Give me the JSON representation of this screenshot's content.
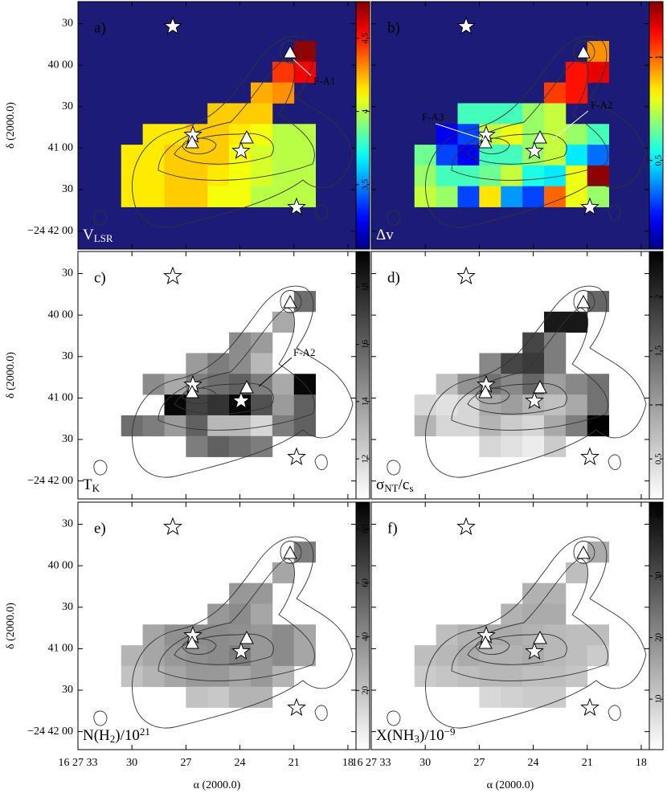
{
  "chart_data": {
    "type": "heatmap",
    "x_label": "α (2000.0)",
    "y_label": "δ (2000.0)",
    "x": [
      30.0,
      28.8,
      27.6,
      26.4,
      25.2,
      24.0,
      22.8,
      21.6,
      20.4
    ],
    "y": [
      130,
      115,
      100,
      85,
      70,
      55,
      40,
      25
    ],
    "xlim": [
      33,
      17.55
    ],
    "ylim": [
      -13,
      166
    ],
    "xticks": [
      {
        "value": 33,
        "label": "16 27 33"
      },
      30,
      27,
      24,
      21,
      18
    ],
    "yticks": [
      {
        "value": 0,
        "label": "−24 42 00"
      },
      30,
      {
        "value": 60,
        "label": "41 00"
      },
      {
        "value": 90,
        "label": "30"
      },
      {
        "value": 120,
        "label": "40 00"
      },
      {
        "value": 150,
        "label": "30"
      }
    ],
    "panels": [
      {
        "label": "a)",
        "quantity": [
          {
            "text": "V"
          },
          {
            "sub": "LSR"
          }
        ],
        "colormap": "jet",
        "background": "#1c1c78",
        "clim": [
          3.06,
          4.75
        ],
        "cticks": [
          3.5,
          4,
          4.5
        ],
        "annotations": [
          "F-A1"
        ],
        "values": [
          [
            null,
            null,
            null,
            null,
            null,
            null,
            null,
            null,
            4.72
          ],
          [
            null,
            null,
            null,
            null,
            null,
            null,
            null,
            4.45,
            4.55
          ],
          [
            null,
            null,
            null,
            null,
            null,
            null,
            4.25,
            4.3,
            null
          ],
          [
            null,
            null,
            null,
            null,
            4.2,
            4.2,
            4.2,
            null,
            null
          ],
          [
            null,
            4.15,
            4.15,
            4.2,
            4.2,
            4.15,
            4.1,
            4.0,
            4.0
          ],
          [
            4.15,
            4.15,
            4.2,
            4.2,
            4.2,
            4.1,
            4.05,
            4.0,
            4.0
          ],
          [
            4.15,
            4.15,
            4.2,
            4.2,
            4.15,
            4.1,
            4.05,
            4.0,
            4.0
          ],
          [
            4.15,
            4.15,
            4.2,
            4.2,
            4.1,
            4.1,
            4.0,
            4.0,
            4.0
          ]
        ]
      },
      {
        "label": "b)",
        "quantity": [
          {
            "text": "Δv"
          }
        ],
        "colormap": "jet",
        "background": "#1c1c78",
        "clim": [
          0.07,
          1.27
        ],
        "cticks": [
          0.5,
          1
        ],
        "annotations": [
          "F-A3",
          "F-A2"
        ],
        "values": [
          [
            null,
            null,
            null,
            null,
            null,
            null,
            null,
            null,
            0.95
          ],
          [
            null,
            null,
            null,
            null,
            null,
            null,
            null,
            1.1,
            1.15
          ],
          [
            null,
            null,
            null,
            null,
            null,
            null,
            1.05,
            1.1,
            null
          ],
          [
            null,
            null,
            0.6,
            0.6,
            0.6,
            0.7,
            0.75,
            null,
            null
          ],
          [
            null,
            0.2,
            0.3,
            0.75,
            0.8,
            0.7,
            0.75,
            0.7,
            0.6
          ],
          [
            0.65,
            0.3,
            0.2,
            0.6,
            0.6,
            0.7,
            0.75,
            0.5,
            0.35
          ],
          [
            0.7,
            0.6,
            0.6,
            0.65,
            0.75,
            0.55,
            0.5,
            0.8,
            1.25
          ],
          [
            0.75,
            0.7,
            0.3,
            0.85,
            0.4,
            0.3,
            1.0,
            0.8,
            0.7
          ]
        ]
      },
      {
        "label": "c)",
        "quantity": [
          {
            "text": "T"
          },
          {
            "sub": "K"
          }
        ],
        "colormap": "gray_r",
        "background": "#ffffff",
        "clim": [
          10.6,
          19.24
        ],
        "cticks": [
          12,
          14,
          16,
          18
        ],
        "annotations": [
          "F-A2"
        ],
        "values": [
          [
            null,
            null,
            null,
            null,
            null,
            null,
            null,
            null,
            15.5
          ],
          [
            null,
            null,
            null,
            null,
            null,
            null,
            null,
            13.5,
            null
          ],
          [
            null,
            null,
            null,
            null,
            null,
            14.5,
            14,
            null,
            null
          ],
          [
            null,
            null,
            null,
            14,
            15,
            14.5,
            13,
            null,
            null
          ],
          [
            null,
            14.5,
            13.5,
            15,
            15.5,
            16,
            15,
            13.5,
            19
          ],
          [
            null,
            null,
            19,
            17,
            17.5,
            19,
            16.5,
            14,
            16
          ],
          [
            15.5,
            15,
            14,
            16,
            13,
            13,
            12,
            15,
            16
          ],
          [
            null,
            null,
            null,
            15,
            16,
            15.5,
            15,
            null,
            null
          ]
        ]
      },
      {
        "label": "d)",
        "quantity": [
          {
            "text": "σ"
          },
          {
            "sub": "NT"
          },
          {
            "text": "/c"
          },
          {
            "sub": "s"
          }
        ],
        "colormap": "gray_r",
        "background": "#ffffff",
        "clim": [
          0.13,
          2.42
        ],
        "cticks": [
          0.5,
          1,
          1.5,
          2
        ],
        "annotations": [],
        "values": [
          [
            null,
            null,
            null,
            null,
            null,
            null,
            null,
            null,
            1.5
          ],
          [
            null,
            null,
            null,
            null,
            null,
            null,
            2.2,
            2.2,
            null
          ],
          [
            null,
            null,
            null,
            null,
            null,
            1.8,
            1.3,
            null,
            null
          ],
          [
            null,
            null,
            null,
            1.2,
            1.8,
            1.9,
            1.3,
            null,
            null
          ],
          [
            null,
            0.7,
            1.1,
            1.4,
            1.2,
            1.5,
            1.0,
            1.2,
            1.4
          ],
          [
            0.5,
            0.4,
            0.5,
            0.9,
            1.0,
            0.8,
            0.7,
            0.9,
            1.4
          ],
          [
            0.8,
            0.5,
            0.5,
            0.8,
            0.6,
            0.5,
            0.9,
            1.3,
            2.4
          ],
          [
            null,
            null,
            null,
            0.5,
            0.4,
            0.3,
            0.6,
            null,
            null
          ]
        ]
      },
      {
        "label": "e)",
        "quantity": [
          {
            "text": "N(H"
          },
          {
            "sub": "2"
          },
          {
            "text": ")/10"
          },
          {
            "sup": "21"
          }
        ],
        "colormap": "gray_r",
        "background": "#ffffff",
        "clim": [
          -2,
          90
        ],
        "cticks": [
          20,
          40,
          60,
          80
        ],
        "annotations": [],
        "values": [
          [
            null,
            null,
            null,
            null,
            null,
            null,
            null,
            null,
            45
          ],
          [
            null,
            null,
            null,
            null,
            null,
            null,
            null,
            30,
            null
          ],
          [
            null,
            null,
            null,
            null,
            null,
            35,
            35,
            null,
            null
          ],
          [
            null,
            null,
            null,
            null,
            35,
            40,
            30,
            null,
            null
          ],
          [
            null,
            30,
            38,
            40,
            40,
            38,
            35,
            40,
            30
          ],
          [
            25,
            30,
            35,
            38,
            40,
            45,
            35,
            40,
            30
          ],
          [
            20,
            25,
            30,
            35,
            35,
            30,
            35,
            25,
            null
          ],
          [
            null,
            null,
            null,
            20,
            18,
            25,
            25,
            null,
            null
          ]
        ]
      },
      {
        "label": "f)",
        "quantity": [
          {
            "text": "X(NH"
          },
          {
            "sub": "3"
          },
          {
            "text": ")/10"
          },
          {
            "sup": "−9"
          }
        ],
        "colormap": "gray_r",
        "background": "#ffffff",
        "clim": [
          1.8,
          42
        ],
        "cticks": [
          10,
          20,
          30,
          40
        ],
        "annotations": [],
        "values": [
          [
            null,
            null,
            null,
            null,
            null,
            null,
            null,
            null,
            15
          ],
          [
            null,
            null,
            null,
            null,
            null,
            null,
            null,
            12,
            null
          ],
          [
            null,
            null,
            null,
            null,
            null,
            14,
            14,
            null,
            null
          ],
          [
            null,
            null,
            null,
            null,
            14,
            15,
            15,
            null,
            null
          ],
          [
            null,
            12,
            14,
            15,
            15,
            14,
            13,
            12,
            12
          ],
          [
            12,
            13,
            15,
            14,
            14,
            15,
            13,
            12,
            10
          ],
          [
            10,
            11,
            12,
            13,
            13,
            12,
            12,
            11,
            null
          ],
          [
            null,
            null,
            null,
            8,
            9,
            10,
            10,
            null,
            null
          ]
        ]
      }
    ]
  }
}
